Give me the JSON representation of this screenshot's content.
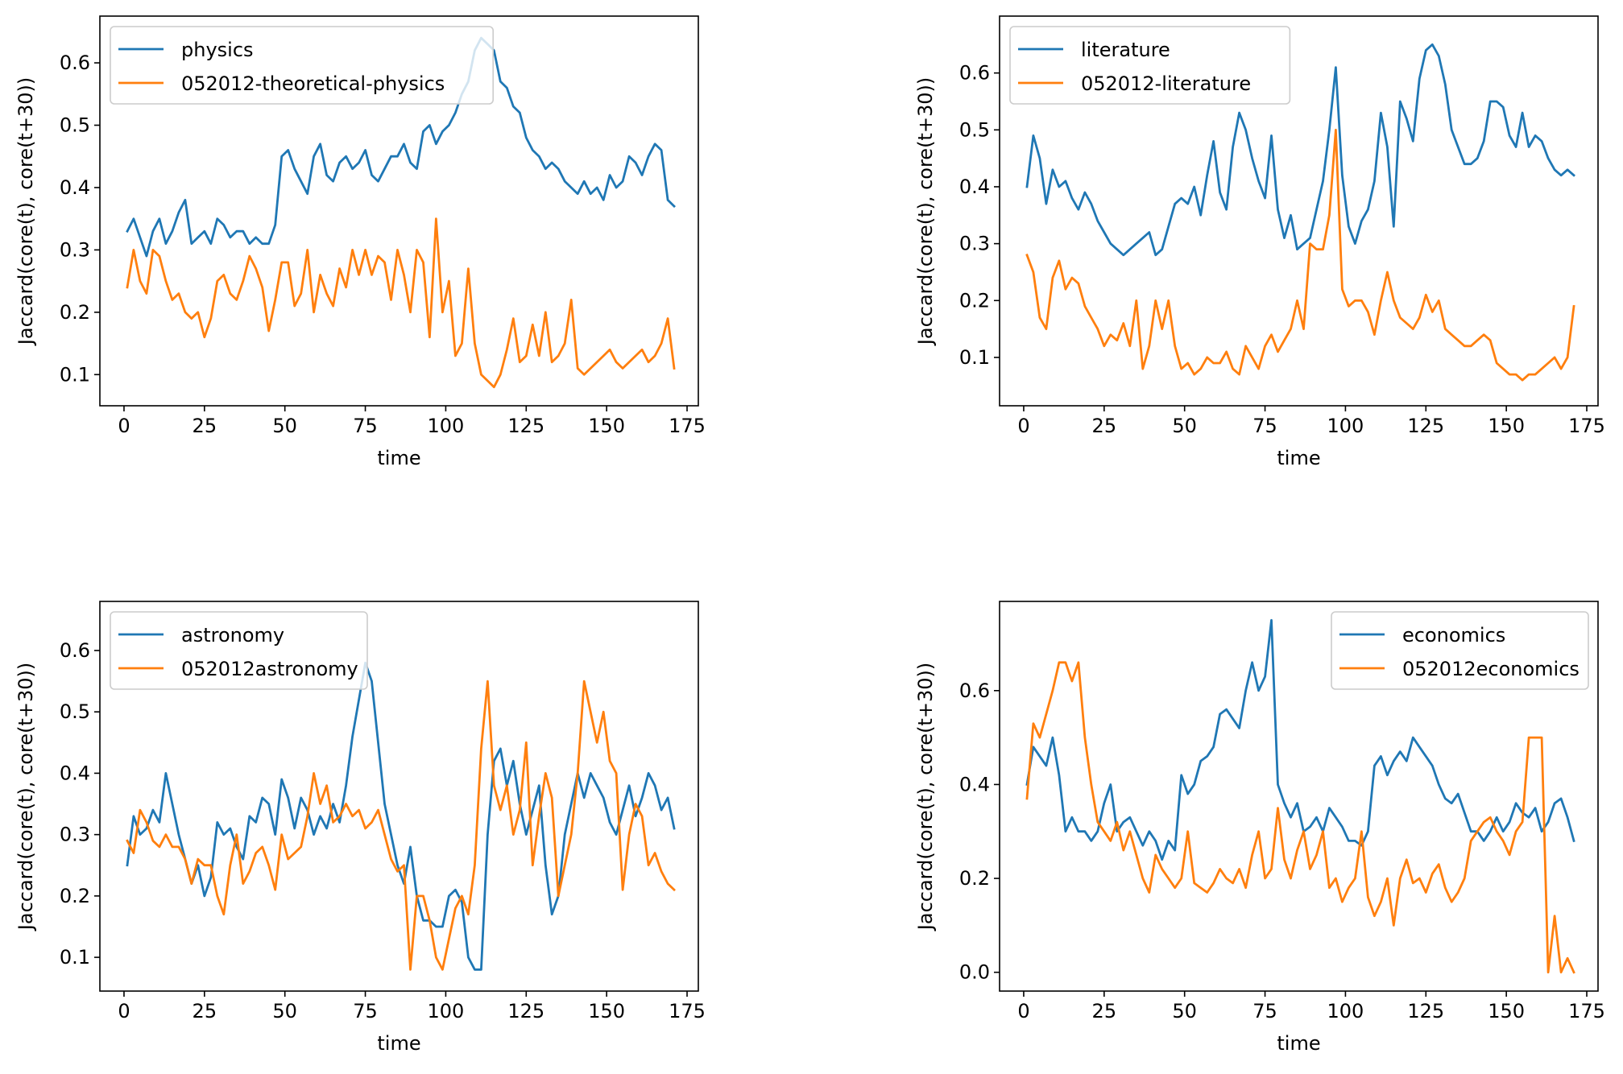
{
  "chart_data": [
    {
      "type": "line",
      "xlabel": "time",
      "ylabel": "Jaccard(core(t), core(t+30))",
      "xlim": [
        -7.5,
        178.5
      ],
      "ylim": [
        0.05,
        0.675
      ],
      "xticks": [
        0,
        25,
        50,
        75,
        100,
        125,
        150,
        175
      ],
      "yticks": [
        0.1,
        0.2,
        0.3,
        0.4,
        0.5,
        0.6
      ],
      "ytick_labels": [
        "0.1",
        "0.2",
        "0.3",
        "0.4",
        "0.5",
        "0.6"
      ],
      "legend_position": "upper-left",
      "grid": false,
      "series": [
        {
          "name": "physics",
          "color": "#1f77b4",
          "x_start": 1,
          "x_step": 2,
          "values": [
            0.33,
            0.35,
            0.32,
            0.29,
            0.33,
            0.35,
            0.31,
            0.33,
            0.36,
            0.38,
            0.31,
            0.32,
            0.33,
            0.31,
            0.35,
            0.34,
            0.32,
            0.33,
            0.33,
            0.31,
            0.32,
            0.31,
            0.31,
            0.34,
            0.45,
            0.46,
            0.43,
            0.41,
            0.39,
            0.45,
            0.47,
            0.42,
            0.41,
            0.44,
            0.45,
            0.43,
            0.44,
            0.46,
            0.42,
            0.41,
            0.43,
            0.45,
            0.45,
            0.47,
            0.44,
            0.43,
            0.49,
            0.5,
            0.47,
            0.49,
            0.5,
            0.52,
            0.55,
            0.57,
            0.62,
            0.64,
            0.63,
            0.62,
            0.57,
            0.56,
            0.53,
            0.52,
            0.48,
            0.46,
            0.45,
            0.43,
            0.44,
            0.43,
            0.41,
            0.4,
            0.39,
            0.41,
            0.39,
            0.4,
            0.38,
            0.42,
            0.4,
            0.41,
            0.45,
            0.44,
            0.42,
            0.45,
            0.47,
            0.46,
            0.38,
            0.37
          ]
        },
        {
          "name": "052012-theoretical-physics",
          "color": "#ff7f0e",
          "x_start": 1,
          "x_step": 2,
          "values": [
            0.24,
            0.3,
            0.25,
            0.23,
            0.3,
            0.29,
            0.25,
            0.22,
            0.23,
            0.2,
            0.19,
            0.2,
            0.16,
            0.19,
            0.25,
            0.26,
            0.23,
            0.22,
            0.25,
            0.29,
            0.27,
            0.24,
            0.17,
            0.22,
            0.28,
            0.28,
            0.21,
            0.23,
            0.3,
            0.2,
            0.26,
            0.23,
            0.21,
            0.27,
            0.24,
            0.3,
            0.26,
            0.3,
            0.26,
            0.29,
            0.28,
            0.22,
            0.3,
            0.26,
            0.2,
            0.3,
            0.28,
            0.16,
            0.35,
            0.2,
            0.25,
            0.13,
            0.15,
            0.27,
            0.15,
            0.1,
            0.09,
            0.08,
            0.1,
            0.14,
            0.19,
            0.12,
            0.13,
            0.18,
            0.13,
            0.2,
            0.12,
            0.13,
            0.15,
            0.22,
            0.11,
            0.1,
            0.11,
            0.12,
            0.13,
            0.14,
            0.12,
            0.11,
            0.12,
            0.13,
            0.14,
            0.12,
            0.13,
            0.15,
            0.19,
            0.11
          ]
        }
      ]
    },
    {
      "type": "line",
      "xlabel": "time",
      "ylabel": "Jaccard(core(t), core(t+30))",
      "xlim": [
        -7.5,
        178.5
      ],
      "ylim": [
        0.015,
        0.7
      ],
      "xticks": [
        0,
        25,
        50,
        75,
        100,
        125,
        150,
        175
      ],
      "yticks": [
        0.1,
        0.2,
        0.3,
        0.4,
        0.5,
        0.6
      ],
      "ytick_labels": [
        "0.1",
        "0.2",
        "0.3",
        "0.4",
        "0.5",
        "0.6"
      ],
      "legend_position": "upper-left",
      "grid": false,
      "series": [
        {
          "name": "literature",
          "color": "#1f77b4",
          "x_start": 1,
          "x_step": 2,
          "values": [
            0.4,
            0.49,
            0.45,
            0.37,
            0.43,
            0.4,
            0.41,
            0.38,
            0.36,
            0.39,
            0.37,
            0.34,
            0.32,
            0.3,
            0.29,
            0.28,
            0.29,
            0.3,
            0.31,
            0.32,
            0.28,
            0.29,
            0.33,
            0.37,
            0.38,
            0.37,
            0.4,
            0.35,
            0.42,
            0.48,
            0.39,
            0.36,
            0.47,
            0.53,
            0.5,
            0.45,
            0.41,
            0.38,
            0.49,
            0.36,
            0.31,
            0.35,
            0.29,
            0.3,
            0.31,
            0.36,
            0.41,
            0.5,
            0.61,
            0.42,
            0.33,
            0.3,
            0.34,
            0.36,
            0.41,
            0.53,
            0.47,
            0.33,
            0.55,
            0.52,
            0.48,
            0.59,
            0.64,
            0.65,
            0.63,
            0.58,
            0.5,
            0.47,
            0.44,
            0.44,
            0.45,
            0.48,
            0.55,
            0.55,
            0.54,
            0.49,
            0.47,
            0.53,
            0.47,
            0.49,
            0.48,
            0.45,
            0.43,
            0.42,
            0.43,
            0.42
          ]
        },
        {
          "name": "052012-literature",
          "color": "#ff7f0e",
          "x_start": 1,
          "x_step": 2,
          "values": [
            0.28,
            0.25,
            0.17,
            0.15,
            0.24,
            0.27,
            0.22,
            0.24,
            0.23,
            0.19,
            0.17,
            0.15,
            0.12,
            0.14,
            0.13,
            0.16,
            0.12,
            0.2,
            0.08,
            0.12,
            0.2,
            0.15,
            0.2,
            0.12,
            0.08,
            0.09,
            0.07,
            0.08,
            0.1,
            0.09,
            0.09,
            0.11,
            0.08,
            0.07,
            0.12,
            0.1,
            0.08,
            0.12,
            0.14,
            0.11,
            0.13,
            0.15,
            0.2,
            0.15,
            0.3,
            0.29,
            0.29,
            0.35,
            0.5,
            0.22,
            0.19,
            0.2,
            0.2,
            0.18,
            0.14,
            0.2,
            0.25,
            0.2,
            0.17,
            0.16,
            0.15,
            0.17,
            0.21,
            0.18,
            0.2,
            0.15,
            0.14,
            0.13,
            0.12,
            0.12,
            0.13,
            0.14,
            0.13,
            0.09,
            0.08,
            0.07,
            0.07,
            0.06,
            0.07,
            0.07,
            0.08,
            0.09,
            0.1,
            0.08,
            0.1,
            0.19
          ]
        }
      ]
    },
    {
      "type": "line",
      "xlabel": "time",
      "ylabel": "Jaccard(core(t), core(t+30))",
      "xlim": [
        -7.5,
        178.5
      ],
      "ylim": [
        0.045,
        0.68
      ],
      "xticks": [
        0,
        25,
        50,
        75,
        100,
        125,
        150,
        175
      ],
      "yticks": [
        0.1,
        0.2,
        0.3,
        0.4,
        0.5,
        0.6
      ],
      "ytick_labels": [
        "0.1",
        "0.2",
        "0.3",
        "0.4",
        "0.5",
        "0.6"
      ],
      "legend_position": "upper-left",
      "grid": false,
      "series": [
        {
          "name": "astronomy",
          "color": "#1f77b4",
          "x_start": 1,
          "x_step": 2,
          "values": [
            0.25,
            0.33,
            0.3,
            0.31,
            0.34,
            0.32,
            0.4,
            0.35,
            0.3,
            0.26,
            0.22,
            0.25,
            0.2,
            0.23,
            0.32,
            0.3,
            0.31,
            0.28,
            0.26,
            0.33,
            0.32,
            0.36,
            0.35,
            0.3,
            0.39,
            0.36,
            0.31,
            0.36,
            0.34,
            0.3,
            0.33,
            0.31,
            0.35,
            0.32,
            0.38,
            0.46,
            0.52,
            0.58,
            0.55,
            0.45,
            0.35,
            0.3,
            0.25,
            0.22,
            0.28,
            0.2,
            0.16,
            0.16,
            0.15,
            0.15,
            0.2,
            0.21,
            0.19,
            0.1,
            0.08,
            0.08,
            0.3,
            0.42,
            0.44,
            0.38,
            0.42,
            0.35,
            0.3,
            0.34,
            0.38,
            0.25,
            0.17,
            0.2,
            0.3,
            0.35,
            0.4,
            0.36,
            0.4,
            0.38,
            0.36,
            0.32,
            0.3,
            0.34,
            0.38,
            0.33,
            0.36,
            0.4,
            0.38,
            0.34,
            0.36,
            0.31
          ]
        },
        {
          "name": "052012astronomy",
          "color": "#ff7f0e",
          "x_start": 1,
          "x_step": 2,
          "values": [
            0.29,
            0.27,
            0.34,
            0.32,
            0.29,
            0.28,
            0.3,
            0.28,
            0.28,
            0.26,
            0.22,
            0.26,
            0.25,
            0.25,
            0.2,
            0.17,
            0.25,
            0.3,
            0.22,
            0.24,
            0.27,
            0.28,
            0.25,
            0.21,
            0.3,
            0.26,
            0.27,
            0.28,
            0.33,
            0.4,
            0.35,
            0.38,
            0.32,
            0.33,
            0.35,
            0.33,
            0.34,
            0.31,
            0.32,
            0.34,
            0.3,
            0.26,
            0.24,
            0.25,
            0.08,
            0.2,
            0.2,
            0.16,
            0.1,
            0.08,
            0.13,
            0.18,
            0.2,
            0.17,
            0.25,
            0.44,
            0.55,
            0.38,
            0.34,
            0.38,
            0.3,
            0.34,
            0.45,
            0.25,
            0.33,
            0.4,
            0.36,
            0.2,
            0.25,
            0.3,
            0.4,
            0.55,
            0.5,
            0.45,
            0.5,
            0.42,
            0.4,
            0.21,
            0.3,
            0.35,
            0.33,
            0.25,
            0.27,
            0.24,
            0.22,
            0.21
          ]
        }
      ]
    },
    {
      "type": "line",
      "xlabel": "time",
      "ylabel": "Jaccard(core(t), core(t+30))",
      "xlim": [
        -7.5,
        178.5
      ],
      "ylim": [
        -0.04,
        0.79
      ],
      "xticks": [
        0,
        25,
        50,
        75,
        100,
        125,
        150,
        175
      ],
      "yticks": [
        0.0,
        0.2,
        0.4,
        0.6
      ],
      "ytick_labels": [
        "0.0",
        "0.2",
        "0.4",
        "0.6"
      ],
      "legend_position": "upper-right",
      "grid": false,
      "series": [
        {
          "name": "economics",
          "color": "#1f77b4",
          "x_start": 1,
          "x_step": 2,
          "values": [
            0.4,
            0.48,
            0.46,
            0.44,
            0.5,
            0.42,
            0.3,
            0.33,
            0.3,
            0.3,
            0.28,
            0.3,
            0.36,
            0.4,
            0.3,
            0.32,
            0.33,
            0.3,
            0.27,
            0.3,
            0.28,
            0.24,
            0.28,
            0.26,
            0.42,
            0.38,
            0.4,
            0.45,
            0.46,
            0.48,
            0.55,
            0.56,
            0.54,
            0.52,
            0.6,
            0.66,
            0.6,
            0.63,
            0.75,
            0.4,
            0.36,
            0.33,
            0.36,
            0.3,
            0.31,
            0.33,
            0.3,
            0.35,
            0.33,
            0.31,
            0.28,
            0.28,
            0.27,
            0.3,
            0.44,
            0.46,
            0.42,
            0.45,
            0.47,
            0.45,
            0.5,
            0.48,
            0.46,
            0.44,
            0.4,
            0.37,
            0.36,
            0.38,
            0.34,
            0.3,
            0.3,
            0.28,
            0.3,
            0.33,
            0.3,
            0.32,
            0.36,
            0.34,
            0.33,
            0.35,
            0.3,
            0.32,
            0.36,
            0.37,
            0.33,
            0.28
          ]
        },
        {
          "name": "052012economics",
          "color": "#ff7f0e",
          "x_start": 1,
          "x_step": 2,
          "values": [
            0.37,
            0.53,
            0.5,
            0.55,
            0.6,
            0.66,
            0.66,
            0.62,
            0.66,
            0.5,
            0.4,
            0.32,
            0.3,
            0.28,
            0.32,
            0.26,
            0.3,
            0.25,
            0.2,
            0.17,
            0.25,
            0.22,
            0.2,
            0.18,
            0.2,
            0.3,
            0.19,
            0.18,
            0.17,
            0.19,
            0.22,
            0.2,
            0.19,
            0.22,
            0.18,
            0.25,
            0.3,
            0.2,
            0.22,
            0.35,
            0.24,
            0.2,
            0.26,
            0.3,
            0.22,
            0.25,
            0.3,
            0.18,
            0.2,
            0.15,
            0.18,
            0.2,
            0.3,
            0.16,
            0.12,
            0.15,
            0.2,
            0.1,
            0.2,
            0.24,
            0.19,
            0.2,
            0.17,
            0.21,
            0.23,
            0.18,
            0.15,
            0.17,
            0.2,
            0.28,
            0.3,
            0.32,
            0.33,
            0.3,
            0.28,
            0.25,
            0.3,
            0.32,
            0.5,
            0.5,
            0.5,
            0.0,
            0.12,
            0.0,
            0.03,
            0.0
          ]
        }
      ]
    }
  ]
}
